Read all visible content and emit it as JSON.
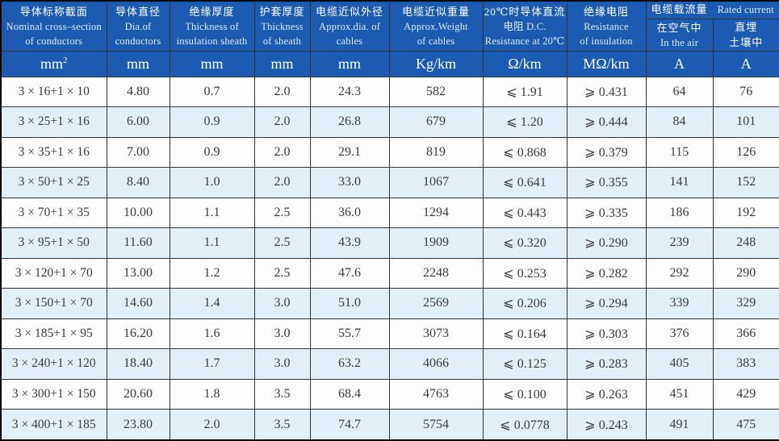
{
  "table": {
    "title": "cable-specification-table",
    "columns": [
      {
        "id": "nominal-cross-section",
        "lines": [
          "导体标称截面",
          "Nominal cross–section",
          "of conductors"
        ],
        "unit": "mm²"
      },
      {
        "id": "conductor-diameter",
        "lines": [
          "导体直径",
          "Dia.of",
          "conductors"
        ],
        "unit": "mm"
      },
      {
        "id": "insulation-thickness",
        "lines": [
          "绝缘厚度",
          "Thickness of",
          "insulation sheath"
        ],
        "unit": "mm"
      },
      {
        "id": "sheath-thickness",
        "lines": [
          "护套厚度",
          "Thickness",
          "of sheath"
        ],
        "unit": "mm"
      },
      {
        "id": "approx-diameter",
        "lines": [
          "电缆近似外径",
          "Approx.dia. of",
          "cables"
        ],
        "unit": "mm"
      },
      {
        "id": "approx-weight",
        "lines": [
          "电缆近似重量",
          "Approx.Weight",
          "of cables"
        ],
        "unit": "Kg/km"
      },
      {
        "id": "dc-resistance",
        "lines": [
          "20℃时导体直流",
          "电阻 D.C.",
          "Resistance at 20℃"
        ],
        "unit": "Ω/km"
      },
      {
        "id": "insulation-resistance",
        "lines": [
          "绝缘电阻",
          "Resistance",
          "of insulation"
        ],
        "unit": "MΩ/km"
      }
    ],
    "rated_current_group": {
      "zh": "电缆载流量",
      "en": "Rated current",
      "sub_columns": [
        {
          "id": "in-the-air",
          "lines": [
            "在空气中",
            "In the air"
          ],
          "unit": "A"
        },
        {
          "id": "buried-in-soil",
          "lines": [
            "直埋",
            "土壤中"
          ],
          "unit": "A"
        }
      ]
    },
    "rows": [
      [
        "3 × 16+1 × 10",
        "4.80",
        "0.7",
        "2.0",
        "24.3",
        "582",
        "⩽ 1.91",
        "⩾ 0.431",
        "64",
        "76"
      ],
      [
        "3 × 25+1 × 16",
        "6.00",
        "0.9",
        "2.0",
        "26.8",
        "679",
        "⩽ 1.20",
        "⩾ 0.444",
        "84",
        "101"
      ],
      [
        "3 × 35+1 × 16",
        "7.00",
        "0.9",
        "2.0",
        "29.1",
        "819",
        "⩽ 0.868",
        "⩾ 0.379",
        "115",
        "126"
      ],
      [
        "3 × 50+1 × 25",
        "8.40",
        "1.0",
        "2.0",
        "33.0",
        "1067",
        "⩽ 0.641",
        "⩾ 0.355",
        "141",
        "152"
      ],
      [
        "3 × 70+1 × 35",
        "10.00",
        "1.1",
        "2.5",
        "36.0",
        "1294",
        "⩽ 0.443",
        "⩾ 0.335",
        "186",
        "192"
      ],
      [
        "3 × 95+1 × 50",
        "11.60",
        "1.1",
        "2.5",
        "43.9",
        "1909",
        "⩽ 0.320",
        "⩾ 0.290",
        "239",
        "248"
      ],
      [
        "3 × 120+1 × 70",
        "13.00",
        "1.2",
        "2.5",
        "47.6",
        "2248",
        "⩽ 0.253",
        "⩾ 0.282",
        "292",
        "290"
      ],
      [
        "3 × 150+1 × 70",
        "14.60",
        "1.4",
        "3.0",
        "51.0",
        "2569",
        "⩽ 0.206",
        "⩾ 0.294",
        "339",
        "329"
      ],
      [
        "3 × 185+1 × 95",
        "16.20",
        "1.6",
        "3.0",
        "55.7",
        "3073",
        "⩽ 0.164",
        "⩾ 0.303",
        "376",
        "366"
      ],
      [
        "3 × 240+1 × 120",
        "18.40",
        "1.7",
        "3.0",
        "63.2",
        "4066",
        "⩽ 0.125",
        "⩾ 0.283",
        "405",
        "383"
      ],
      [
        "3 × 300+1 × 150",
        "20.60",
        "1.8",
        "3.5",
        "68.4",
        "4763",
        "⩽ 0.100",
        "⩾ 0.263",
        "451",
        "429"
      ],
      [
        "3 × 400+1 × 185",
        "23.80",
        "2.0",
        "3.5",
        "74.7",
        "5754",
        "⩽ 0.0778",
        "⩾ 0.243",
        "491",
        "475"
      ]
    ]
  },
  "colors": {
    "header_bg": "#1b5bb2",
    "header_text": "#ffffff",
    "header_text_en": "#dfeafa",
    "row_alt_bg": "#e1eff9",
    "row_bg": "#fdfdfd",
    "body_text": "#3c3c3c",
    "border": "#353535"
  }
}
